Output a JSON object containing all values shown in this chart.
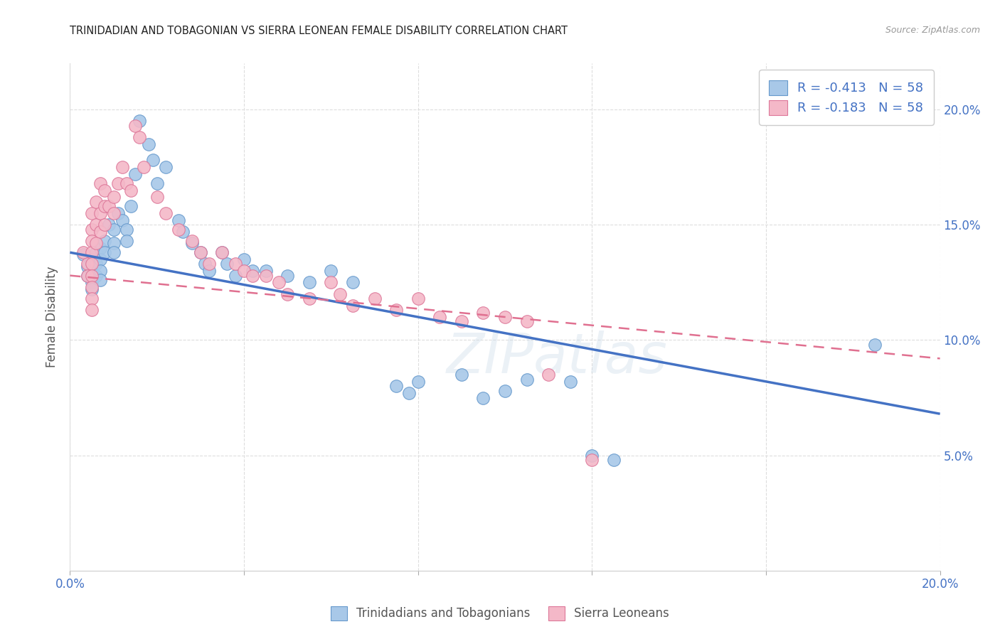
{
  "title": "TRINIDADIAN AND TOBAGONIAN VS SIERRA LEONEAN FEMALE DISABILITY CORRELATION CHART",
  "source": "Source: ZipAtlas.com",
  "ylabel": "Female Disability",
  "xlim": [
    0.0,
    0.2
  ],
  "ylim": [
    0.0,
    0.22
  ],
  "yticks": [
    0.05,
    0.1,
    0.15,
    0.2
  ],
  "ytick_labels": [
    "5.0%",
    "10.0%",
    "15.0%",
    "20.0%"
  ],
  "xticks": [
    0.0,
    0.04,
    0.08,
    0.12,
    0.16,
    0.2
  ],
  "xtick_labels": [
    "0.0%",
    "",
    "",
    "",
    "",
    "20.0%"
  ],
  "legend_label1": "R = -0.413   N = 58",
  "legend_label2": "R = -0.183   N = 58",
  "bottom_label1": "Trinidadians and Tobagonians",
  "bottom_label2": "Sierra Leoneans",
  "color_blue": "#a8c8e8",
  "color_blue_edge": "#6699cc",
  "color_pink": "#f4b8c8",
  "color_pink_edge": "#dd7799",
  "color_blue_line": "#4472c4",
  "color_pink_line": "#e07090",
  "watermark": "ZIPatlas",
  "blue_line_x": [
    0.0,
    0.2
  ],
  "blue_line_y": [
    0.138,
    0.068
  ],
  "pink_line_x": [
    0.0,
    0.2
  ],
  "pink_line_y": [
    0.128,
    0.092
  ],
  "blue_scatter": [
    [
      0.003,
      0.137
    ],
    [
      0.004,
      0.132
    ],
    [
      0.004,
      0.128
    ],
    [
      0.005,
      0.135
    ],
    [
      0.005,
      0.13
    ],
    [
      0.005,
      0.125
    ],
    [
      0.005,
      0.122
    ],
    [
      0.006,
      0.138
    ],
    [
      0.006,
      0.133
    ],
    [
      0.006,
      0.128
    ],
    [
      0.007,
      0.14
    ],
    [
      0.007,
      0.135
    ],
    [
      0.007,
      0.13
    ],
    [
      0.007,
      0.126
    ],
    [
      0.008,
      0.143
    ],
    [
      0.008,
      0.138
    ],
    [
      0.009,
      0.15
    ],
    [
      0.01,
      0.148
    ],
    [
      0.01,
      0.142
    ],
    [
      0.01,
      0.138
    ],
    [
      0.011,
      0.155
    ],
    [
      0.012,
      0.152
    ],
    [
      0.013,
      0.148
    ],
    [
      0.013,
      0.143
    ],
    [
      0.014,
      0.158
    ],
    [
      0.015,
      0.172
    ],
    [
      0.016,
      0.195
    ],
    [
      0.018,
      0.185
    ],
    [
      0.019,
      0.178
    ],
    [
      0.02,
      0.168
    ],
    [
      0.022,
      0.175
    ],
    [
      0.025,
      0.152
    ],
    [
      0.026,
      0.147
    ],
    [
      0.028,
      0.142
    ],
    [
      0.03,
      0.138
    ],
    [
      0.031,
      0.133
    ],
    [
      0.032,
      0.13
    ],
    [
      0.035,
      0.138
    ],
    [
      0.036,
      0.133
    ],
    [
      0.038,
      0.128
    ],
    [
      0.04,
      0.135
    ],
    [
      0.042,
      0.13
    ],
    [
      0.045,
      0.13
    ],
    [
      0.05,
      0.128
    ],
    [
      0.055,
      0.125
    ],
    [
      0.06,
      0.13
    ],
    [
      0.065,
      0.125
    ],
    [
      0.075,
      0.08
    ],
    [
      0.078,
      0.077
    ],
    [
      0.08,
      0.082
    ],
    [
      0.09,
      0.085
    ],
    [
      0.095,
      0.075
    ],
    [
      0.1,
      0.078
    ],
    [
      0.105,
      0.083
    ],
    [
      0.115,
      0.082
    ],
    [
      0.12,
      0.05
    ],
    [
      0.125,
      0.048
    ],
    [
      0.185,
      0.098
    ]
  ],
  "pink_scatter": [
    [
      0.003,
      0.138
    ],
    [
      0.004,
      0.133
    ],
    [
      0.004,
      0.128
    ],
    [
      0.005,
      0.155
    ],
    [
      0.005,
      0.148
    ],
    [
      0.005,
      0.143
    ],
    [
      0.005,
      0.138
    ],
    [
      0.005,
      0.133
    ],
    [
      0.005,
      0.128
    ],
    [
      0.005,
      0.123
    ],
    [
      0.005,
      0.118
    ],
    [
      0.005,
      0.113
    ],
    [
      0.006,
      0.16
    ],
    [
      0.006,
      0.15
    ],
    [
      0.006,
      0.142
    ],
    [
      0.007,
      0.168
    ],
    [
      0.007,
      0.155
    ],
    [
      0.007,
      0.147
    ],
    [
      0.008,
      0.165
    ],
    [
      0.008,
      0.158
    ],
    [
      0.008,
      0.15
    ],
    [
      0.009,
      0.158
    ],
    [
      0.01,
      0.162
    ],
    [
      0.01,
      0.155
    ],
    [
      0.011,
      0.168
    ],
    [
      0.012,
      0.175
    ],
    [
      0.013,
      0.168
    ],
    [
      0.014,
      0.165
    ],
    [
      0.015,
      0.193
    ],
    [
      0.016,
      0.188
    ],
    [
      0.017,
      0.175
    ],
    [
      0.02,
      0.162
    ],
    [
      0.022,
      0.155
    ],
    [
      0.025,
      0.148
    ],
    [
      0.028,
      0.143
    ],
    [
      0.03,
      0.138
    ],
    [
      0.032,
      0.133
    ],
    [
      0.035,
      0.138
    ],
    [
      0.038,
      0.133
    ],
    [
      0.04,
      0.13
    ],
    [
      0.042,
      0.128
    ],
    [
      0.045,
      0.128
    ],
    [
      0.048,
      0.125
    ],
    [
      0.05,
      0.12
    ],
    [
      0.055,
      0.118
    ],
    [
      0.06,
      0.125
    ],
    [
      0.062,
      0.12
    ],
    [
      0.065,
      0.115
    ],
    [
      0.07,
      0.118
    ],
    [
      0.075,
      0.113
    ],
    [
      0.08,
      0.118
    ],
    [
      0.085,
      0.11
    ],
    [
      0.09,
      0.108
    ],
    [
      0.095,
      0.112
    ],
    [
      0.1,
      0.11
    ],
    [
      0.105,
      0.108
    ],
    [
      0.11,
      0.085
    ],
    [
      0.12,
      0.048
    ]
  ]
}
